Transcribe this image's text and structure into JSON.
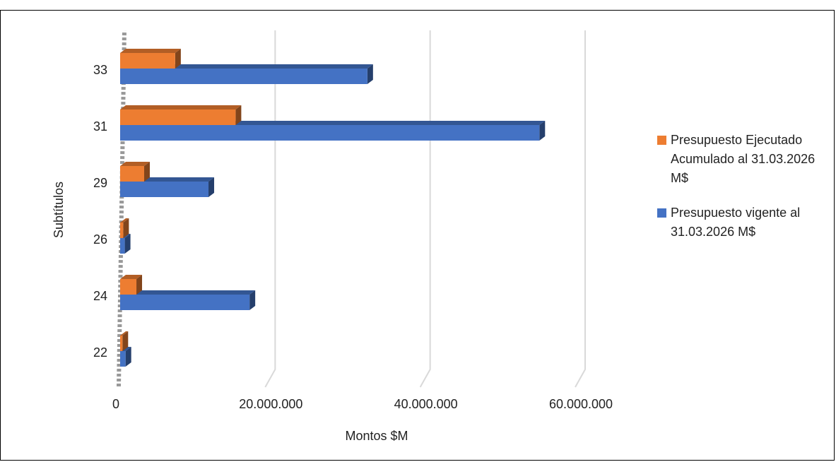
{
  "chart_data": {
    "type": "bar",
    "orientation": "horizontal",
    "x_label": "Montos $M",
    "y_label": "Subtítulos",
    "categories": [
      "22",
      "24",
      "26",
      "29",
      "31",
      "33"
    ],
    "series": [
      {
        "name": "Presupuesto vigente al 31.03.2026 M$",
        "color": "#4472c4",
        "values": [
          700000,
          16700000,
          600000,
          11400000,
          54100000,
          31900000
        ]
      },
      {
        "name": "Presupuesto Ejecutado Acumulado al 31.03.2026 M$",
        "color": "#ed7d31",
        "values": [
          300000,
          2100000,
          400000,
          3100000,
          14900000,
          7100000
        ]
      }
    ],
    "xlim": [
      0,
      60000000
    ],
    "xticks": [
      0,
      {
        "value": 20000000,
        "label": "20.000.000"
      },
      {
        "value": 40000000,
        "label": "40.000.000"
      },
      {
        "value": 60000000,
        "label": "60.000.000"
      }
    ],
    "grid": true,
    "legend": "right"
  }
}
